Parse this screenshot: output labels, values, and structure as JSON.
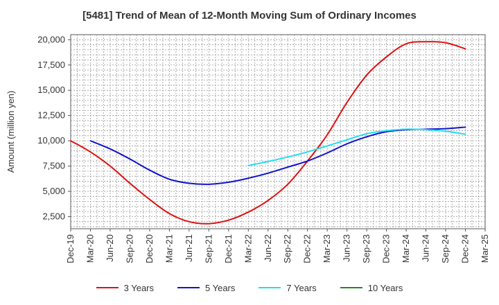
{
  "chart_data": {
    "type": "line",
    "title": "[5481]  Trend of Mean of 12-Month Moving Sum of Ordinary Incomes",
    "xlabel": "",
    "ylabel": "Amount (million yen)",
    "ylim": [
      1300,
      20500
    ],
    "yticks": [
      2500,
      5000,
      7500,
      10000,
      12500,
      15000,
      17500,
      20000
    ],
    "ytick_labels": [
      "2,500",
      "5,000",
      "7,500",
      "10,000",
      "12,500",
      "15,000",
      "17,500",
      "20,000"
    ],
    "categories": [
      "Dec-19",
      "Mar-20",
      "Jun-20",
      "Sep-20",
      "Dec-20",
      "Mar-21",
      "Jun-21",
      "Sep-21",
      "Dec-21",
      "Mar-22",
      "Jun-22",
      "Sep-22",
      "Dec-22",
      "Mar-23",
      "Jun-23",
      "Sep-23",
      "Dec-23",
      "Mar-24",
      "Jun-24",
      "Sep-24",
      "Dec-24",
      "Mar-25"
    ],
    "grid": true,
    "legend_position": "bottom",
    "series": [
      {
        "name": "3 Years",
        "color": "#dd1111",
        "values": [
          10000,
          8900,
          7500,
          5800,
          4200,
          2800,
          2000,
          1800,
          2150,
          2950,
          4100,
          5700,
          8000,
          10600,
          13800,
          16500,
          18300,
          19600,
          19800,
          19700,
          19100,
          null
        ]
      },
      {
        "name": "5 Years",
        "color": "#1111cc",
        "values": [
          null,
          10000,
          9200,
          8200,
          7100,
          6200,
          5800,
          5700,
          5900,
          6300,
          6800,
          7400,
          8000,
          8800,
          9700,
          10400,
          10900,
          11100,
          11150,
          11200,
          11350,
          null
        ]
      },
      {
        "name": "7 Years",
        "color": "#22ddee",
        "values": [
          null,
          null,
          null,
          null,
          null,
          null,
          null,
          null,
          null,
          7550,
          7950,
          8400,
          8900,
          9500,
          10100,
          10700,
          11000,
          11150,
          11100,
          10950,
          10650,
          null
        ]
      },
      {
        "name": "10 Years",
        "color": "#228822",
        "values": [
          null,
          null,
          null,
          null,
          null,
          null,
          null,
          null,
          null,
          null,
          null,
          null,
          null,
          null,
          null,
          null,
          null,
          null,
          null,
          null,
          null,
          null
        ]
      }
    ]
  }
}
